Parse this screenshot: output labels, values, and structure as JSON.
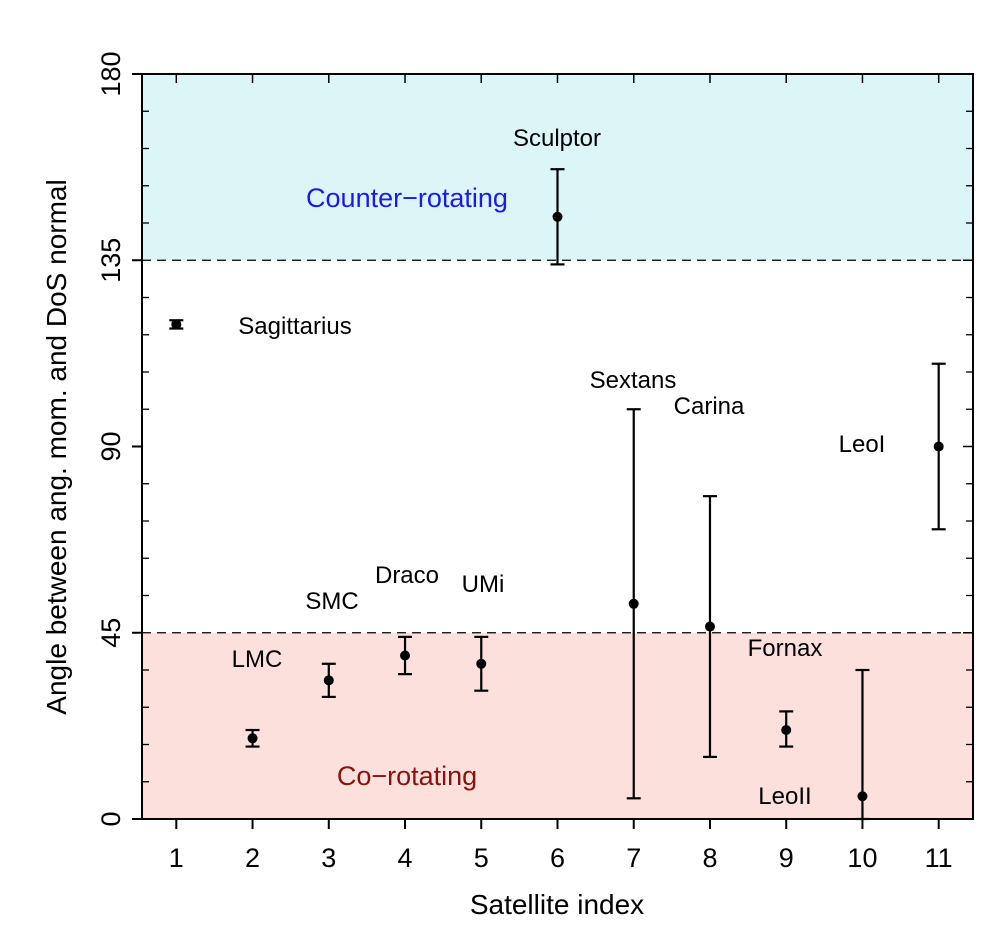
{
  "chart_data": {
    "type": "scatter",
    "xlabel": "Satellite index",
    "ylabel": "Angle between ang. mom. and DoS normal",
    "xlim": [
      0.55,
      11.45
    ],
    "ylim": [
      0,
      180
    ],
    "x_ticks": [
      "1",
      "2",
      "3",
      "4",
      "5",
      "6",
      "7",
      "8",
      "9",
      "10",
      "11"
    ],
    "y_ticks": [
      "0",
      "45",
      "90",
      "135",
      "180"
    ],
    "regions": [
      {
        "label": "Counter−rotating",
        "from": 135,
        "to": 180,
        "fill": "#dcf6f8",
        "text_color": "#1a1aee"
      },
      {
        "label": "Co−rotating",
        "from": 0,
        "to": 45,
        "fill": "#fbe0dc",
        "text_color": "#8b1010"
      }
    ],
    "reference_lines": [
      45,
      135
    ],
    "points": [
      {
        "x": 1,
        "y": 119.5,
        "lo": 118.5,
        "hi": 120.5,
        "label": "Sagittarius"
      },
      {
        "x": 2,
        "y": 19.5,
        "lo": 17.5,
        "hi": 21.5,
        "label": "LMC"
      },
      {
        "x": 3,
        "y": 33.5,
        "lo": 29.5,
        "hi": 37.5,
        "label": "SMC"
      },
      {
        "x": 4,
        "y": 39.5,
        "lo": 35,
        "hi": 44,
        "label": "Draco"
      },
      {
        "x": 5,
        "y": 37.5,
        "lo": 31,
        "hi": 44,
        "label": "UMi"
      },
      {
        "x": 6,
        "y": 145.5,
        "lo": 134,
        "hi": 157,
        "label": "Sculptor"
      },
      {
        "x": 7,
        "y": 52,
        "lo": 5,
        "hi": 99,
        "label": "Sextans"
      },
      {
        "x": 8,
        "y": 46.5,
        "lo": 15,
        "hi": 78,
        "label": "Carina"
      },
      {
        "x": 9,
        "y": 21.5,
        "lo": 17.5,
        "hi": 26,
        "label": "Fornax"
      },
      {
        "x": 10,
        "y": 5.5,
        "lo": 0,
        "hi": 36,
        "label": "LeoII"
      },
      {
        "x": 11,
        "y": 90,
        "lo": 70,
        "hi": 110,
        "label": "LeoI"
      }
    ]
  }
}
